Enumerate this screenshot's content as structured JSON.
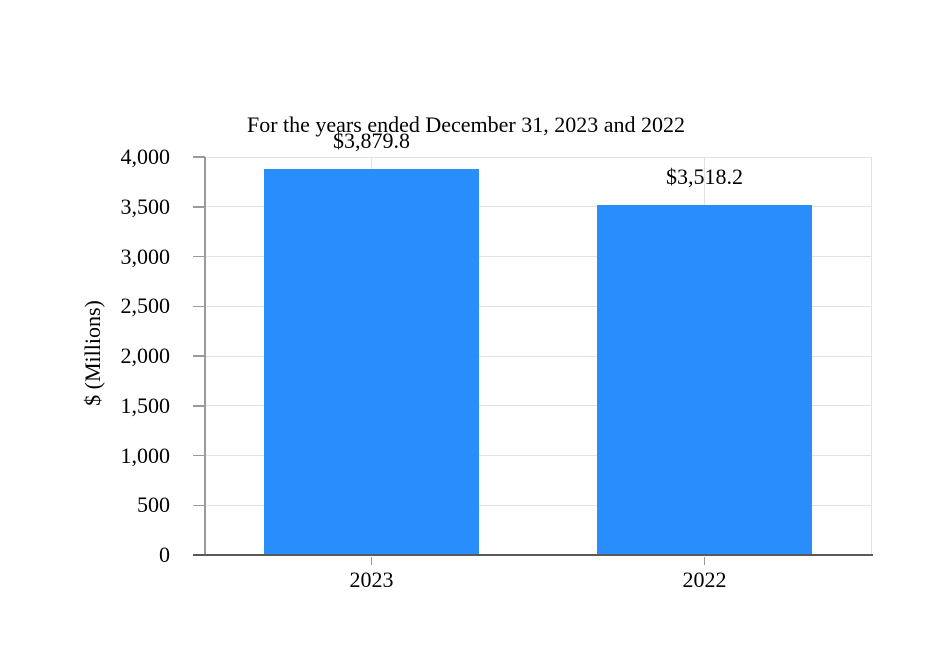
{
  "chart_data": {
    "type": "bar",
    "title": "For the years ended December 31, 2023 and 2022",
    "title_line2": ":",
    "categories": [
      "2023",
      "2022"
    ],
    "values": [
      3879.8,
      3518.2
    ],
    "data_labels": [
      "$3,879.8",
      "$3,518.2"
    ],
    "xlabel": "",
    "ylabel": "$ (Millions)",
    "ylim": [
      0,
      4000
    ],
    "ytick_interval": 500,
    "ytick_labels": [
      "0",
      "500",
      "1,000",
      "1,500",
      "2,000",
      "2,500",
      "3,000",
      "3,500",
      "4,000"
    ],
    "grid": true,
    "legend_position": "none",
    "bar_color": "#2A8DFC"
  },
  "colors": {
    "background": "#FFFFFF",
    "bar": "#2A8DFC",
    "gridline": "#E3E3E3",
    "y_axis_line": "#9A9A9A",
    "x_axis_line": "#595959",
    "tick_mark": "#9A9A9A",
    "text": "#000000"
  }
}
